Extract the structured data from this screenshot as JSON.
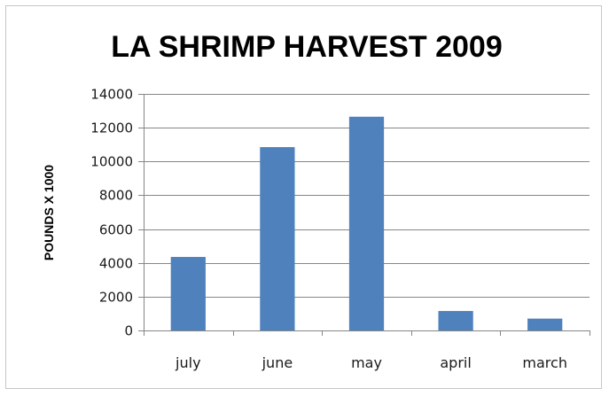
{
  "chart_data": {
    "type": "bar",
    "title": "LA SHRIMP HARVEST 2009",
    "xlabel": "",
    "ylabel": "POUNDS X 1000",
    "categories": [
      "july",
      "june",
      "may",
      "april",
      "march"
    ],
    "values": [
      4350,
      10850,
      12650,
      1150,
      700
    ],
    "ylim": [
      0,
      14000
    ],
    "yticks": [
      0,
      2000,
      4000,
      6000,
      8000,
      10000,
      12000,
      14000
    ],
    "grid": true,
    "legend": "none",
    "colors": {
      "bar": "#4f81bd",
      "grid": "#868686",
      "axis": "#868686"
    }
  }
}
